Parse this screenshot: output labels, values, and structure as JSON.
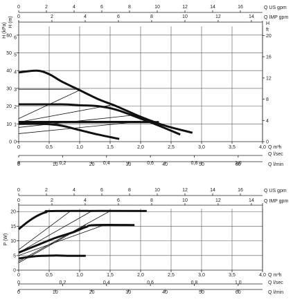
{
  "chart_data": [
    {
      "type": "line",
      "ylabel_left": "H (kPa)",
      "ylabel_left2": "H (m)",
      "ylabel_right": "H",
      "ylabel_right_unit": "ft",
      "xlim": [
        0,
        4.0
      ],
      "ylim": [
        0,
        65
      ],
      "grid": true,
      "y_ticks_left": [
        "0",
        "10",
        "20",
        "30",
        "40",
        "50",
        "60"
      ],
      "y_ticks_left_m": [
        "0",
        "1",
        "2",
        "3",
        "4",
        "5",
        "6"
      ],
      "y_ticks_right": [
        "0",
        "4",
        "8",
        "12",
        "16",
        "20"
      ],
      "axes_top": [
        {
          "unit": "Q US gpm",
          "ticks": [
            "0",
            "2",
            "4",
            "6",
            "8",
            "10",
            "12",
            "14",
            "16"
          ]
        },
        {
          "unit": "Q IMP gpm",
          "ticks": [
            "0",
            "2",
            "4",
            "6",
            "8",
            "10",
            "12",
            "14"
          ]
        }
      ],
      "axes_bottom": [
        {
          "unit": "Q m³h",
          "ticks": [
            "0",
            "0,5",
            "1,0",
            "1,5",
            "2,0",
            "2,5",
            "3,0",
            "3,5",
            "4,0"
          ]
        },
        {
          "unit": "Q l/sec",
          "ticks": [
            "0",
            "0,2",
            "0,4",
            "0,6",
            "0,8",
            "1,0"
          ]
        },
        {
          "unit": "Q l/min",
          "ticks": [
            "0",
            "10",
            "20",
            "30",
            "40",
            "50",
            "60"
          ]
        }
      ],
      "series": [
        {
          "style": "thick",
          "x": [
            0.0,
            0.3,
            0.5,
            0.7,
            1.0,
            1.3,
            1.6,
            2.0,
            2.4,
            2.85
          ],
          "y": [
            39,
            40,
            38,
            34,
            29,
            24,
            20,
            14,
            9,
            5
          ]
        },
        {
          "style": "thick",
          "x": [
            0.0,
            0.7,
            1.0,
            1.3,
            1.6,
            2.0,
            2.3,
            2.65
          ],
          "y": [
            21,
            21,
            20.5,
            20,
            18,
            13,
            9,
            4
          ]
        },
        {
          "style": "thick",
          "x": [
            0.0,
            0.5,
            1.0,
            1.5,
            2.0,
            2.3
          ],
          "y": [
            11,
            11,
            11,
            11,
            11,
            11
          ]
        },
        {
          "style": "thick",
          "x": [
            0.0,
            0.4,
            0.7,
            1.0,
            1.3,
            1.65
          ],
          "y": [
            10,
            10,
            9,
            6.5,
            4,
            1.5
          ]
        },
        {
          "style": "thin",
          "x": [
            0.0,
            1.0
          ],
          "y": [
            29.5,
            29.5
          ]
        },
        {
          "style": "thin",
          "x": [
            0.0,
            2.0
          ],
          "y": [
            11.5,
            11.5
          ]
        },
        {
          "style": "thin",
          "x": [
            0.0,
            1.0
          ],
          "y": [
            13,
            29
          ]
        },
        {
          "style": "thin",
          "x": [
            0.0,
            1.5
          ],
          "y": [
            11,
            20.5
          ]
        },
        {
          "style": "thin",
          "x": [
            0.0,
            1.9
          ],
          "y": [
            8,
            15
          ]
        },
        {
          "style": "thin",
          "x": [
            0.0,
            2.2
          ],
          "y": [
            4.5,
            12
          ]
        }
      ]
    },
    {
      "type": "line",
      "ylabel_left": "P (W)",
      "xlim": [
        0,
        4.0
      ],
      "ylim": [
        0,
        21
      ],
      "grid": true,
      "y_ticks_left": [
        "0",
        "5",
        "10",
        "15",
        "20"
      ],
      "axes_top": [
        {
          "unit": "Q US gpm",
          "ticks": [
            "0",
            "2",
            "4",
            "6",
            "8",
            "10",
            "12",
            "14",
            "16"
          ]
        },
        {
          "unit": "Q IMP gpm",
          "ticks": [
            "0",
            "2",
            "4",
            "6",
            "8",
            "10",
            "12",
            "14"
          ]
        }
      ],
      "axes_bottom": [
        {
          "unit": "Q m³h",
          "ticks": [
            "0",
            "0,5",
            "1,0",
            "1,5",
            "2,0",
            "2,5",
            "3,0",
            "3,5",
            "4,0"
          ]
        },
        {
          "unit": "Q l/sec",
          "ticks": [
            "0",
            "0,2",
            "0,4",
            "0,6",
            "0,8",
            "1,0"
          ]
        },
        {
          "unit": "Q l/min",
          "ticks": [
            "0",
            "10",
            "20",
            "30",
            "40",
            "50",
            "60"
          ]
        }
      ],
      "series": [
        {
          "style": "thick",
          "x": [
            0.0,
            0.15,
            0.3,
            0.45,
            0.6,
            2.1
          ],
          "y": [
            14,
            16.5,
            18.5,
            19.8,
            20.2,
            20.2
          ]
        },
        {
          "style": "thick",
          "x": [
            0.0,
            0.3,
            0.6,
            0.9,
            1.1,
            1.25,
            1.9
          ],
          "y": [
            6,
            8.5,
            11,
            13,
            14.7,
            15.4,
            15.4
          ]
        },
        {
          "style": "thick",
          "x": [
            0.0,
            0.3,
            0.6,
            0.8,
            1.1
          ],
          "y": [
            4,
            4.8,
            5,
            4.9,
            4.9
          ]
        },
        {
          "style": "thin",
          "x": [
            0.0,
            0.85
          ],
          "y": [
            7,
            20.2
          ]
        },
        {
          "style": "thin",
          "x": [
            0.0,
            1.2
          ],
          "y": [
            6,
            20.2
          ]
        },
        {
          "style": "thin",
          "x": [
            0.0,
            1.5
          ],
          "y": [
            3,
            20.2
          ]
        },
        {
          "style": "thin",
          "x": [
            0.0,
            1.1
          ],
          "y": [
            2.5,
            15.4
          ]
        },
        {
          "style": "thin",
          "x": [
            0.0,
            1.4
          ],
          "y": [
            5,
            15.4
          ]
        }
      ]
    }
  ]
}
